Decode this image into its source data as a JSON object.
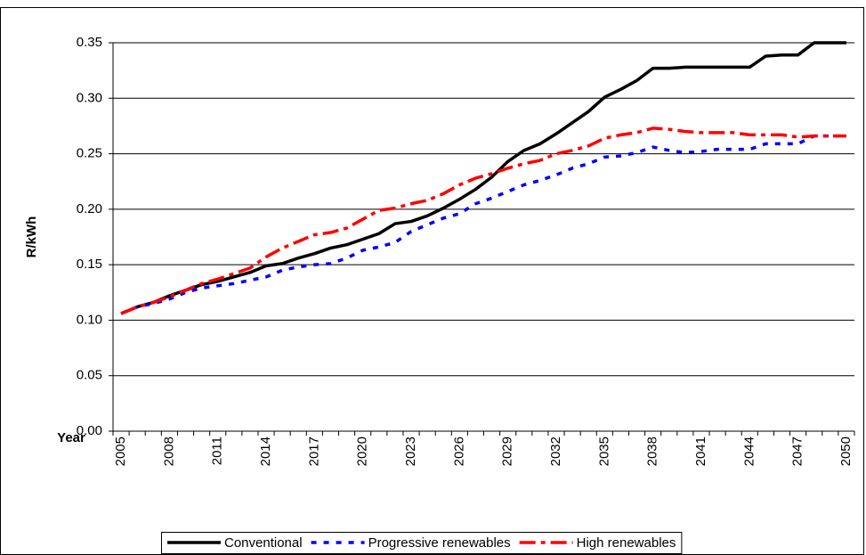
{
  "chart_data": {
    "type": "line",
    "x_label": "Year",
    "y_label": "R/kWh",
    "categories": [
      "2005",
      null,
      null,
      "2008",
      null,
      null,
      "2011",
      null,
      null,
      "2014",
      null,
      null,
      "2017",
      null,
      null,
      "2020",
      null,
      null,
      "2023",
      null,
      null,
      "2026",
      null,
      null,
      "2029",
      null,
      null,
      "2032",
      null,
      null,
      "2035",
      null,
      null,
      "2038",
      null,
      null,
      "2041",
      null,
      null,
      "2044",
      null,
      null,
      "2047",
      null,
      null,
      "2050"
    ],
    "series": [
      {
        "name": "Conventional",
        "color": "#000000",
        "line_style": "solid",
        "values": [
          0.106,
          0.112,
          0.116,
          0.122,
          0.127,
          0.132,
          0.135,
          0.139,
          0.143,
          0.149,
          0.151,
          0.156,
          0.16,
          0.165,
          0.168,
          0.173,
          0.178,
          0.187,
          0.189,
          0.194,
          0.201,
          0.209,
          0.218,
          0.229,
          0.243,
          0.253,
          0.259,
          0.268,
          0.278,
          0.288,
          0.301,
          0.308,
          0.316,
          0.327,
          0.327,
          0.328,
          0.328,
          0.328,
          0.328,
          0.328,
          0.338,
          0.339,
          0.339,
          0.35,
          0.35,
          0.35
        ]
      },
      {
        "name": "Progressive renewables",
        "color": "#0000ff",
        "line_style": "dashed",
        "values": [
          0.106,
          0.112,
          0.115,
          0.119,
          0.125,
          0.129,
          0.131,
          0.133,
          0.136,
          0.139,
          0.145,
          0.148,
          0.15,
          0.151,
          0.156,
          0.163,
          0.166,
          0.17,
          0.18,
          0.186,
          0.192,
          0.196,
          0.205,
          0.21,
          0.216,
          0.222,
          0.226,
          0.231,
          0.237,
          0.241,
          0.247,
          0.248,
          0.251,
          0.256,
          0.253,
          0.251,
          0.252,
          0.254,
          0.254,
          0.254,
          0.259,
          0.259,
          0.259,
          0.266,
          0.266,
          0.266
        ]
      },
      {
        "name": "High renewables",
        "color": "#ff0000",
        "line_style": "dashdot",
        "values": [
          0.106,
          0.112,
          0.116,
          0.121,
          0.127,
          0.133,
          0.137,
          0.142,
          0.147,
          0.157,
          0.165,
          0.171,
          0.177,
          0.179,
          0.183,
          0.191,
          0.199,
          0.201,
          0.205,
          0.208,
          0.214,
          0.222,
          0.228,
          0.232,
          0.237,
          0.241,
          0.244,
          0.25,
          0.253,
          0.257,
          0.264,
          0.267,
          0.269,
          0.273,
          0.272,
          0.27,
          0.269,
          0.269,
          0.269,
          0.267,
          0.267,
          0.267,
          0.265,
          0.266,
          0.266,
          0.266
        ]
      }
    ],
    "ylim": [
      0,
      0.35
    ],
    "yticks": [
      {
        "value": 0,
        "label": "0.00"
      },
      {
        "value": 0.05,
        "label": "0.05"
      },
      {
        "value": 0.1,
        "label": "0.10"
      },
      {
        "value": 0.15,
        "label": "0.15"
      },
      {
        "value": 0.2,
        "label": "0.20"
      },
      {
        "value": 0.25,
        "label": "0.25"
      },
      {
        "value": 0.3,
        "label": "0.30"
      },
      {
        "value": 0.35,
        "label": "0.35"
      }
    ],
    "grid": true,
    "legend": "bottom"
  }
}
